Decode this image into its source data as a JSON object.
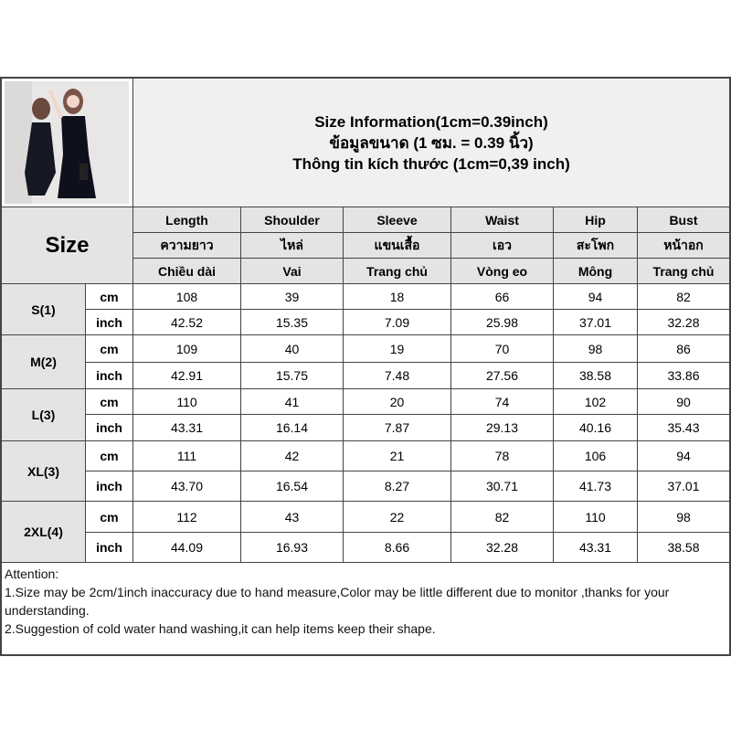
{
  "title_lines": [
    "Size Information(1cm=0.39inch)",
    "ข้อมูลขนาด (1 ซม. = 0.39 นิ้ว)",
    "Thông tin kích thước (1cm=0,39 inch)"
  ],
  "size_header": "Size",
  "columns": [
    {
      "en": "Length",
      "th": "ความยาว",
      "vi": "Chiều dài"
    },
    {
      "en": "Shoulder",
      "th": "ไหล่",
      "vi": "Vai"
    },
    {
      "en": "Sleeve",
      "th": "แขนเสื้อ",
      "vi": "Trang chủ"
    },
    {
      "en": "Waist",
      "th": "เอว",
      "vi": "Vòng eo"
    },
    {
      "en": "Hip",
      "th": "สะโพก",
      "vi": "Mông"
    },
    {
      "en": "Bust",
      "th": "หน้าอก",
      "vi": "Trang chủ"
    }
  ],
  "units": {
    "cm": "cm",
    "inch": "inch"
  },
  "rows": [
    {
      "size": "S(1)",
      "cm": [
        "108",
        "39",
        "18",
        "66",
        "94",
        "82"
      ],
      "inch": [
        "42.52",
        "15.35",
        "7.09",
        "25.98",
        "37.01",
        "32.28"
      ]
    },
    {
      "size": "M(2)",
      "cm": [
        "109",
        "40",
        "19",
        "70",
        "98",
        "86"
      ],
      "inch": [
        "42.91",
        "15.75",
        "7.48",
        "27.56",
        "38.58",
        "33.86"
      ]
    },
    {
      "size": "L(3)",
      "cm": [
        "110",
        "41",
        "20",
        "74",
        "102",
        "90"
      ],
      "inch": [
        "43.31",
        "16.14",
        "7.87",
        "29.13",
        "40.16",
        "35.43"
      ]
    },
    {
      "size": "XL(3)",
      "cm": [
        "111",
        "42",
        "21",
        "78",
        "106",
        "94"
      ],
      "inch": [
        "43.70",
        "16.54",
        "8.27",
        "30.71",
        "41.73",
        "37.01"
      ]
    },
    {
      "size": "2XL(4)",
      "cm": [
        "112",
        "43",
        "22",
        "82",
        "110",
        "98"
      ],
      "inch": [
        "44.09",
        "16.93",
        "8.66",
        "32.28",
        "43.31",
        "38.58"
      ]
    }
  ],
  "attention": {
    "heading": "Attention:",
    "notes": [
      "1.Size may be 2cm/1inch inaccuracy due to hand measure,Color may be little different due to monitor ,thanks for your understanding.",
      "2.Suggestion of cold water hand washing,it can help items keep their shape."
    ]
  }
}
